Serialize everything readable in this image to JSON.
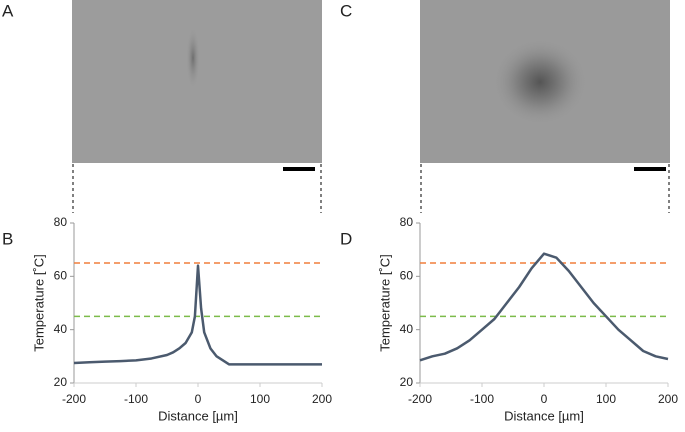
{
  "panel_labels": [
    "A",
    "B",
    "C",
    "D"
  ],
  "chart_data": [
    {
      "type": "line",
      "y_label": "Temperature [˚C]",
      "x_label": "Distance [µm]",
      "color": "#4b5a6e",
      "x": [
        -200,
        -175,
        -150,
        -125,
        -100,
        -75,
        -50,
        -40,
        -30,
        -20,
        -10,
        -5,
        0,
        5,
        10,
        20,
        30,
        40,
        50,
        75,
        100,
        125,
        150,
        175,
        200
      ],
      "values": [
        27.5,
        27.8,
        28,
        28.2,
        28.5,
        29.2,
        30.5,
        31.5,
        33,
        35,
        39,
        45,
        64,
        48,
        39,
        33,
        30,
        28.5,
        27,
        27,
        27,
        27,
        27,
        27,
        27
      ],
      "xlim": [
        -200,
        200
      ],
      "ylim": [
        20,
        80
      ],
      "xticks": [
        -200,
        -100,
        0,
        100,
        200
      ],
      "yticks": [
        20,
        40,
        60,
        80
      ],
      "hlines": [
        {
          "value": 65,
          "color": "#f07f3c"
        },
        {
          "value": 45,
          "color": "#7cbb4a"
        }
      ]
    },
    {
      "type": "line",
      "y_label": "Temperature [˚C]",
      "x_label": "Distance [µm]",
      "color": "#4b5a6e",
      "x": [
        -200,
        -180,
        -160,
        -140,
        -120,
        -100,
        -80,
        -60,
        -40,
        -20,
        0,
        20,
        40,
        60,
        80,
        100,
        120,
        140,
        160,
        180,
        200
      ],
      "values": [
        28.5,
        30,
        31,
        33,
        36,
        40,
        44,
        50,
        56,
        63,
        68.5,
        67,
        62,
        56,
        50,
        45,
        40,
        36,
        32,
        30,
        29
      ],
      "xlim": [
        -200,
        200
      ],
      "ylim": [
        20,
        80
      ],
      "xticks": [
        -200,
        -100,
        0,
        100,
        200
      ],
      "yticks": [
        20,
        40,
        60,
        80
      ],
      "hlines": [
        {
          "value": 65,
          "color": "#f07f3c"
        },
        {
          "value": 45,
          "color": "#7cbb4a"
        }
      ]
    }
  ]
}
